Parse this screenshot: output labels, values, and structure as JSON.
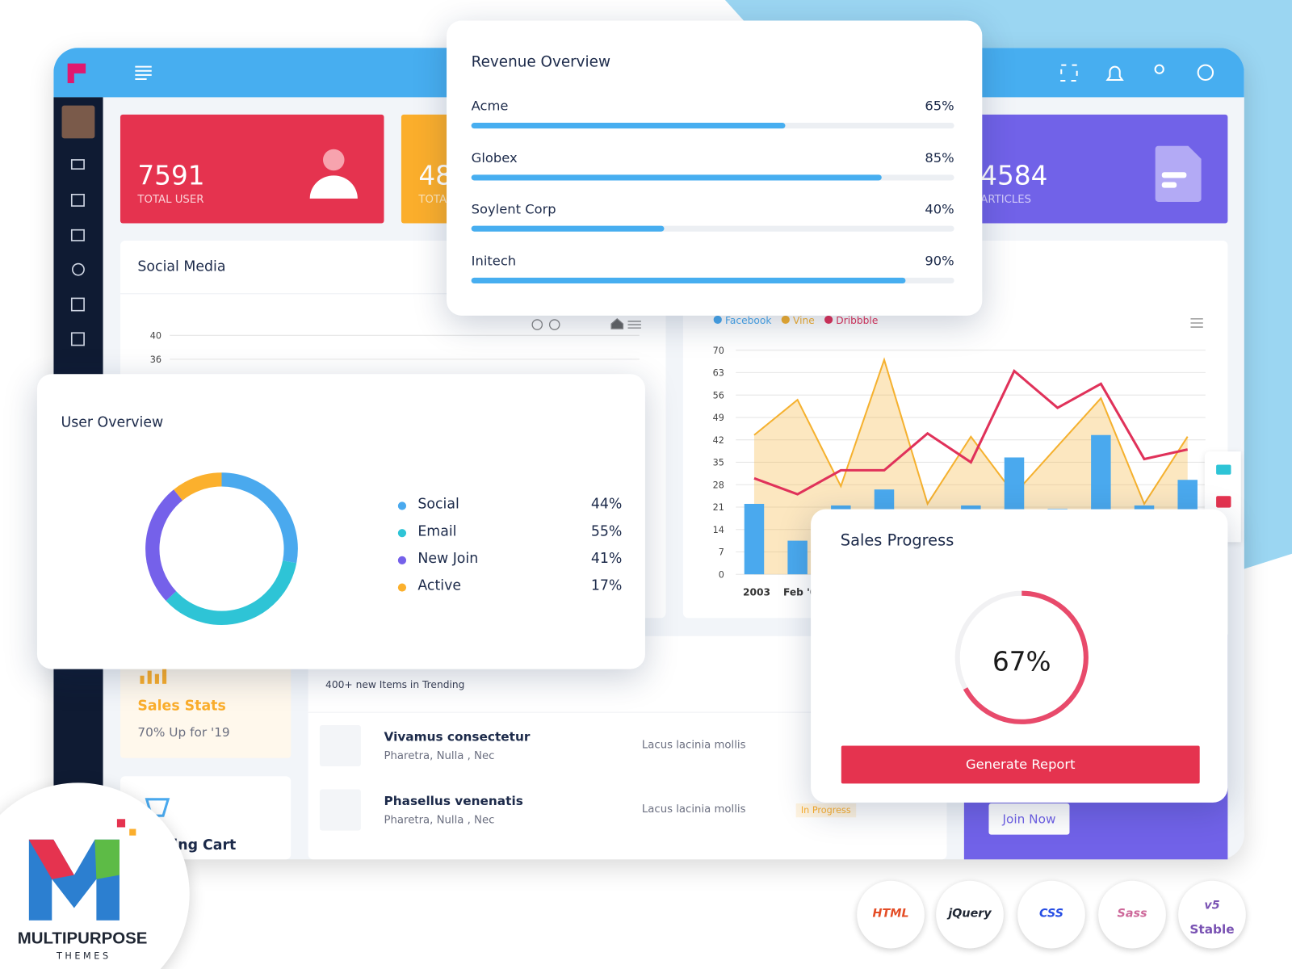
{
  "stat_cards": [
    {
      "value": 7591,
      "label": "TOTAL USER"
    },
    {
      "value": 48,
      "label": "TOTA"
    },
    {
      "value": 4584,
      "label": "ARTICLES"
    }
  ],
  "social_media": {
    "title": "Social Media",
    "ylim": [
      0,
      40
    ],
    "yticks": [
      40,
      36
    ]
  },
  "activity_chart": {
    "type": "bar-area-line",
    "categories": [
      "2003",
      "Feb '0",
      null,
      null,
      null,
      null,
      null,
      null,
      null,
      null,
      null
    ],
    "ylim": [
      0,
      70
    ],
    "yticks": [
      0,
      7,
      14,
      21,
      28,
      35,
      42,
      49,
      56,
      63,
      70
    ],
    "series": [
      {
        "name": "Facebook",
        "color": "#4aa9ee",
        "kind": "bar",
        "values": [
          22,
          10.5,
          21.5,
          26.5,
          20,
          21.5,
          36.5,
          20.5,
          43.5,
          21.5,
          29.5
        ]
      },
      {
        "name": "Vine",
        "color": "#f5b12f",
        "kind": "area",
        "values": [
          43.5,
          54.5,
          27.5,
          67,
          22,
          43,
          25,
          40,
          55,
          22,
          43
        ]
      },
      {
        "name": "Dribbble",
        "color": "#e0325a",
        "kind": "line",
        "values": [
          30,
          25,
          32.5,
          32.5,
          44,
          35,
          63.5,
          52,
          59.5,
          36,
          39
        ]
      }
    ]
  },
  "revenue_overview": {
    "title": "Revenue Overview",
    "items": [
      {
        "name": "Acme",
        "value": 65,
        "value_label": "65%"
      },
      {
        "name": "Globex",
        "value": 85,
        "value_label": "85%"
      },
      {
        "name": "Soylent Corp",
        "value": 40,
        "value_label": "40%"
      },
      {
        "name": "Initech",
        "value": 90,
        "value_label": "90%"
      }
    ]
  },
  "user_overview": {
    "title": "User Overview",
    "items": [
      {
        "name": "Social",
        "value": 44,
        "value_label": "44%",
        "color": "#4aa9ee"
      },
      {
        "name": "Email",
        "value": 55,
        "value_label": "55%",
        "color": "#2ec4d6"
      },
      {
        "name": "New Join",
        "value": 41,
        "value_label": "41%",
        "color": "#7561ea"
      },
      {
        "name": "Active",
        "value": 17,
        "value_label": "17%",
        "color": "#fbb02d"
      }
    ]
  },
  "sales_progress": {
    "title": "Sales Progress",
    "value": 67,
    "value_label": "67%",
    "button": "Generate Report"
  },
  "sales_stats": {
    "title": "Sales Stats",
    "subtitle": "70% Up for '19"
  },
  "trending": {
    "subtitle": "400+ new Items in Trending",
    "rows": [
      {
        "title": "Vivamus consectetur",
        "subtitle": "Pharetra, Nulla , Nec",
        "note": "Lacus lacinia mollis"
      },
      {
        "title": "Phasellus venenatis",
        "subtitle": "Pharetra, Nulla , Nec",
        "note": "Lacus lacinia mollis",
        "status": "In Progress"
      }
    ]
  },
  "cart": {
    "title": "ing Cart"
  },
  "promo": {
    "button": "Join Now"
  },
  "brand": {
    "name": "MULTIPURPOSE",
    "tagline": "T H E M E S"
  },
  "badges": [
    "HTML",
    "jQuery",
    "CSS",
    "Sass",
    "v5",
    "Stable"
  ]
}
